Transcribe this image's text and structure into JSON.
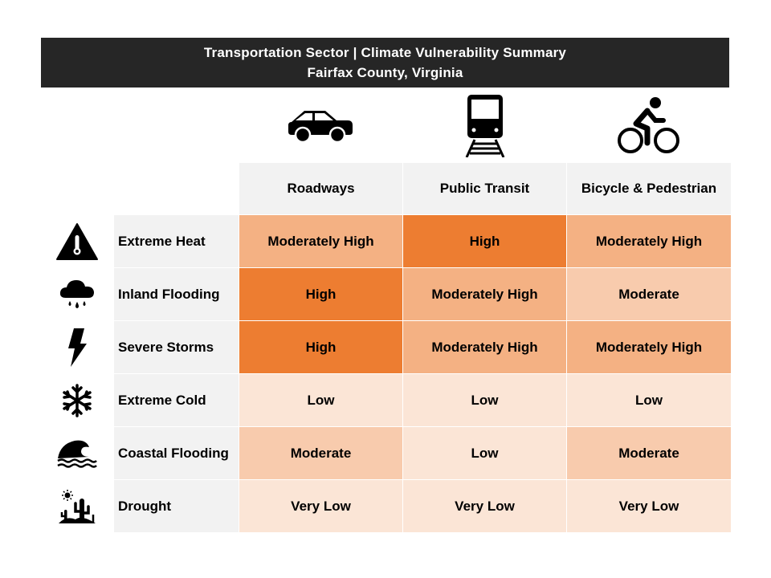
{
  "title": {
    "line1": "Transportation  Sector | Climate Vulnerability Summary",
    "line2": "Fairfax County, Virginia"
  },
  "columns": [
    {
      "label": "Roadways",
      "icon": "car-icon"
    },
    {
      "label": "Public Transit",
      "icon": "train-icon"
    },
    {
      "label": "Bicycle & Pedestrian",
      "icon": "cyclist-icon"
    }
  ],
  "rows": [
    {
      "hazard": "Extreme Heat",
      "icon": "heat-warning-icon",
      "values": [
        "Moderately High",
        "High",
        "Moderately High"
      ]
    },
    {
      "hazard": "Inland Flooding",
      "icon": "rain-cloud-icon",
      "values": [
        "High",
        "Moderately High",
        "Moderate"
      ]
    },
    {
      "hazard": "Severe Storms",
      "icon": "lightning-icon",
      "values": [
        "High",
        "Moderately High",
        "Moderately High"
      ]
    },
    {
      "hazard": "Extreme Cold",
      "icon": "snowflake-icon",
      "values": [
        "Low",
        "Low",
        "Low"
      ]
    },
    {
      "hazard": "Coastal Flooding",
      "icon": "wave-icon",
      "values": [
        "Moderate",
        "Low",
        "Moderate"
      ]
    },
    {
      "hazard": "Drought",
      "icon": "desert-cactus-icon",
      "values": [
        "Very Low",
        "Very Low",
        "Very Low"
      ]
    }
  ],
  "level_colors": {
    "High": "#ED7D31",
    "Moderately High": "#F4B183",
    "Moderate": "#F8CBAD",
    "Low": "#FBE5D6",
    "Very Low": "#FBE5D6"
  }
}
